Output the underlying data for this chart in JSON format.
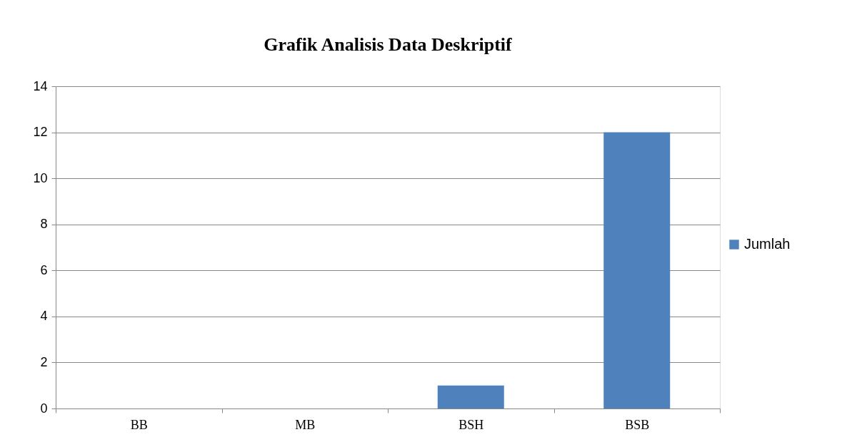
{
  "chart_data": {
    "type": "bar",
    "title": "Grafik Analisis Data Deskriptif",
    "categories": [
      "BB",
      "MB",
      "BSH",
      "BSB"
    ],
    "series": [
      {
        "name": "Jumlah",
        "color": "#4f81bd",
        "values": [
          0,
          0,
          1,
          12
        ]
      }
    ],
    "ylim": [
      0,
      14
    ],
    "yticks": [
      0,
      2,
      4,
      6,
      8,
      10,
      12,
      14
    ],
    "grid": "y",
    "legend": "right"
  }
}
